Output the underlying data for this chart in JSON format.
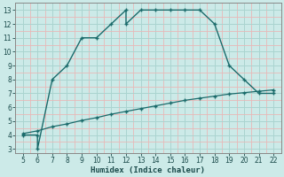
{
  "xlabel": "Humidex (Indice chaleur)",
  "bg_color": "#cceae8",
  "grid_major_color": "#aad4d0",
  "grid_minor_color": "#e8b8b8",
  "line_color": "#1a6b6b",
  "upper_x": [
    5,
    6,
    6,
    7,
    8,
    9,
    10,
    11,
    12,
    12,
    13,
    14,
    15,
    16,
    17,
    18,
    19,
    20,
    21,
    22
  ],
  "upper_y": [
    4,
    4,
    3,
    8,
    9,
    11,
    11,
    12,
    13,
    12,
    13,
    13,
    13,
    13,
    13,
    12,
    9,
    8,
    7,
    7
  ],
  "lower_x": [
    5,
    6,
    7,
    8,
    9,
    10,
    11,
    12,
    13,
    14,
    15,
    16,
    17,
    18,
    19,
    20,
    21,
    22
  ],
  "lower_y": [
    4.1,
    4.3,
    4.6,
    4.8,
    5.05,
    5.25,
    5.5,
    5.7,
    5.9,
    6.1,
    6.3,
    6.5,
    6.65,
    6.8,
    6.95,
    7.05,
    7.15,
    7.25
  ],
  "xlim": [
    4.5,
    22.5
  ],
  "ylim": [
    2.7,
    13.5
  ],
  "xticks": [
    5,
    6,
    7,
    8,
    9,
    10,
    11,
    12,
    13,
    14,
    15,
    16,
    17,
    18,
    19,
    20,
    21,
    22
  ],
  "yticks": [
    3,
    4,
    5,
    6,
    7,
    8,
    9,
    10,
    11,
    12,
    13
  ]
}
